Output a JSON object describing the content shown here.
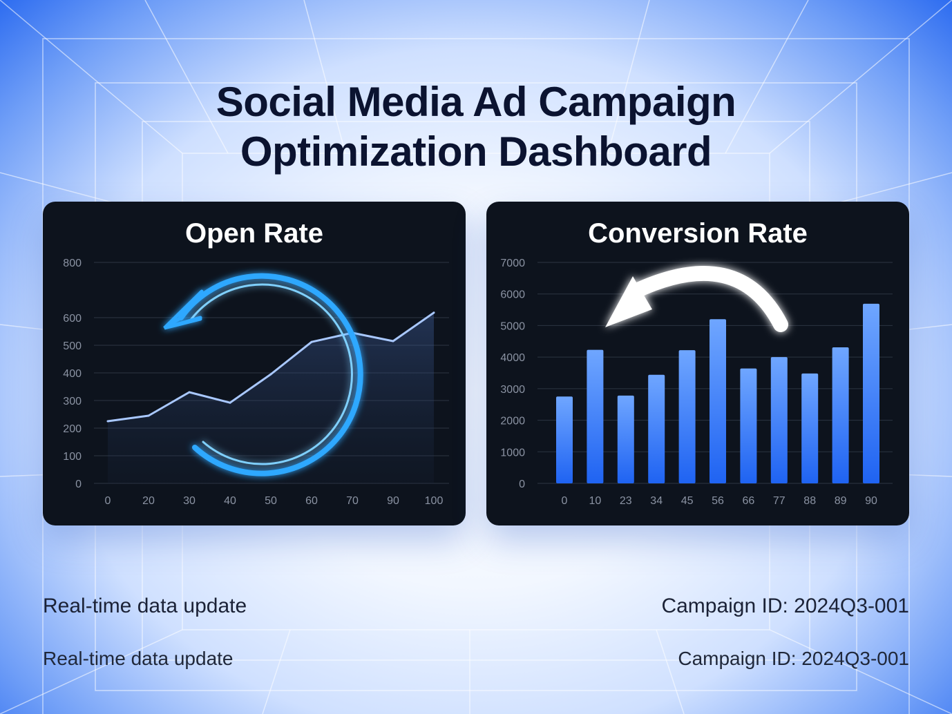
{
  "page": {
    "title_line1": "Social Media Ad Campaign",
    "title_line2": "Optimization Dashboard"
  },
  "footer": {
    "left_1": "Real-time data update",
    "right_1": "Campaign ID: 2024Q3-001",
    "left_2": "Real-time data update",
    "right_2": "Campaign ID: 2024Q3-001"
  },
  "icons": {
    "open_rate_overlay": "circular-refresh-arrow-icon",
    "conversion_overlay": "curved-back-arrow-icon"
  },
  "colors": {
    "line": "#a9c8ff",
    "bar_top": "#6fa6ff",
    "bar_bottom": "#1f63f2",
    "glow": "#2fa8ff"
  },
  "chart_data": [
    {
      "type": "area",
      "title": "Open Rate",
      "x": [
        0,
        20,
        30,
        40,
        50,
        60,
        70,
        90,
        100
      ],
      "values": [
        225,
        245,
        330,
        292,
        395,
        512,
        545,
        515,
        618
      ],
      "xlabel": "",
      "ylabel": "",
      "ylim": [
        0,
        800
      ],
      "yticks": [
        0,
        100,
        200,
        300,
        400,
        500,
        600,
        800
      ],
      "grid": true,
      "legend": "none"
    },
    {
      "type": "bar",
      "title": "Conversion Rate",
      "categories": [
        "0",
        "10",
        "23",
        "34",
        "45",
        "56",
        "66",
        "77",
        "88",
        "89",
        "90"
      ],
      "values": [
        2750,
        4230,
        2780,
        3440,
        4220,
        5200,
        3640,
        4000,
        3480,
        4310,
        5690
      ],
      "xlabel": "",
      "ylabel": "",
      "ylim": [
        0,
        7000
      ],
      "yticks": [
        0,
        1000,
        2000,
        3000,
        4000,
        5000,
        6000,
        7000
      ],
      "grid": true,
      "legend": "none"
    }
  ]
}
